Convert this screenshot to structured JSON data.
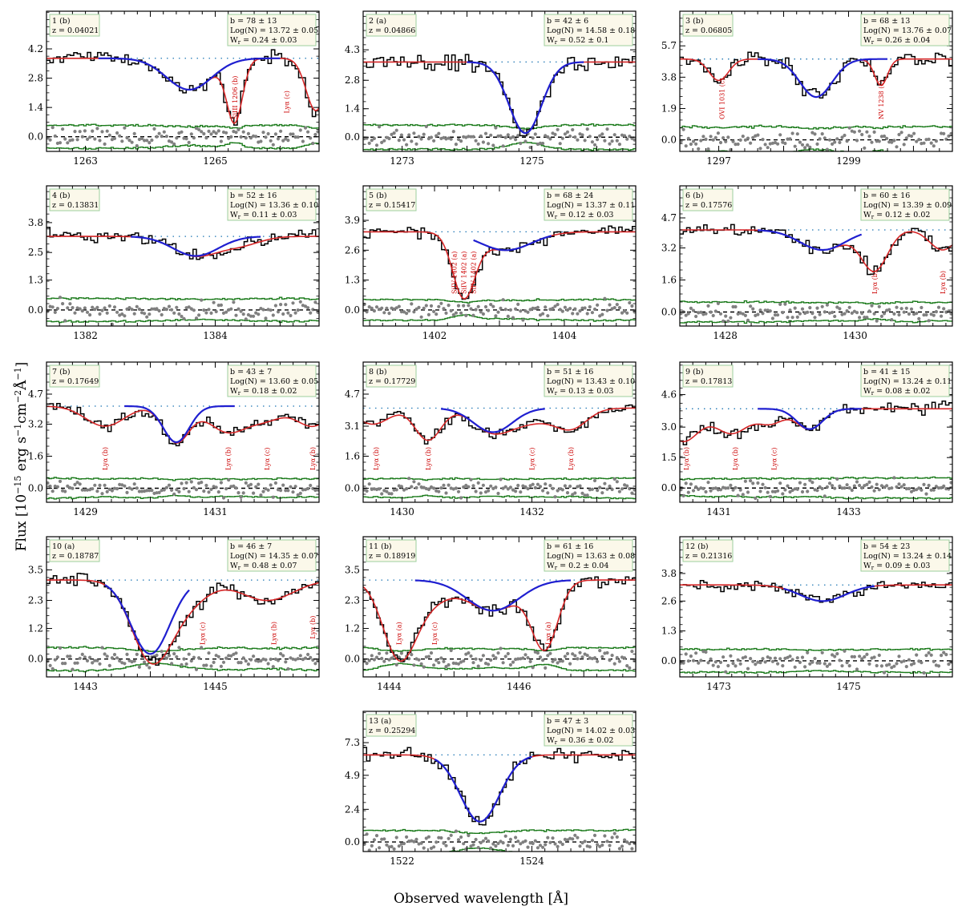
{
  "figure": {
    "xlabel": "Observed wavelength [Å]",
    "ylabel_main": "Flux [10",
    "ylabel_exp1": "−15",
    "ylabel_mid": " erg s",
    "ylabel_exp2": "−1",
    "ylabel_mid2": "cm",
    "ylabel_exp3": "−2",
    "ylabel_mid3": "Å",
    "ylabel_exp4": "−1",
    "ylabel_end": "]"
  },
  "colors": {
    "data": "#000000",
    "total_fit": "#d62728",
    "component_fit": "#1f1fd0",
    "error": "#1a7a1a",
    "residual": "#808080",
    "continuum": "#1f77b4",
    "annotation": "#cc0000",
    "label_box": "#fbf8ea",
    "label_box_edge": "#9ecf9e"
  },
  "chart_data": [
    {
      "type": "line",
      "panel": "1 (b)",
      "z": "z = 0.04021",
      "b": "b = 78 ± 13",
      "logN": "Log(N) = 13.72 ± 0.05",
      "wr": "0.24 ± 0.03",
      "xlim": [
        1262.4,
        1266.6
      ],
      "ylim": [
        -0.7,
        6.0
      ],
      "xticks": [
        1263,
        1265
      ],
      "yticks": [
        0.0,
        1.4,
        2.8,
        4.2
      ],
      "ytick_labels": [
        "0.0",
        "1.4",
        "2.8",
        "4.2"
      ],
      "continuum": 3.75,
      "noise": 0.55,
      "center": 1264.6,
      "sigma": 0.35,
      "depth": 1.5,
      "comp_range": [
        1263.2,
        1266.0
      ],
      "others": [
        {
          "c": 1265.3,
          "s": 0.12,
          "d": 2.9
        },
        {
          "c": 1266.55,
          "s": 0.15,
          "d": 2.5
        }
      ],
      "annotations": [
        {
          "text": "SiIII 1206 (b)",
          "x": 1265.3
        },
        {
          "text": "Lyα (c)",
          "x": 1266.1
        }
      ]
    },
    {
      "type": "line",
      "panel": "2 (a)",
      "z": "z = 0.04866",
      "b": "b = 42 ± 6",
      "logN": "Log(N) = 14.58 ± 0.18",
      "wr": "0.52 ± 0.1",
      "xlim": [
        1272.4,
        1276.6
      ],
      "ylim": [
        -0.7,
        6.2
      ],
      "xticks": [
        1273,
        1275
      ],
      "yticks": [
        0.0,
        1.4,
        2.8,
        4.3
      ],
      "ytick_labels": [
        "0.0",
        "1.4",
        "2.8",
        "4.3"
      ],
      "continuum": 3.7,
      "noise": 0.6,
      "center": 1274.9,
      "sigma": 0.25,
      "depth": 3.5,
      "comp_range": [
        1274.0,
        1275.8
      ],
      "others": [],
      "annotations": []
    },
    {
      "type": "line",
      "panel": "3 (b)",
      "z": "z = 0.06805",
      "b": "b = 68 ± 13",
      "logN": "Log(N) = 13.76 ± 0.07",
      "wr": "0.26 ± 0.04",
      "xlim": [
        1296.4,
        1300.6
      ],
      "ylim": [
        -0.7,
        7.8
      ],
      "xticks": [
        1297,
        1299
      ],
      "yticks": [
        0.0,
        1.9,
        3.8,
        5.7
      ],
      "ytick_labels": [
        "0.0",
        "1.9",
        "3.8",
        "5.7"
      ],
      "continuum": 4.9,
      "noise": 0.8,
      "center": 1298.5,
      "sigma": 0.25,
      "depth": 2.3,
      "comp_range": [
        1297.6,
        1299.6
      ],
      "others": [
        {
          "c": 1297.0,
          "s": 0.15,
          "d": 1.3
        },
        {
          "c": 1299.5,
          "s": 0.1,
          "d": 1.6
        }
      ],
      "annotations": [
        {
          "text": "OVI 1031 (c)",
          "x": 1297.05
        },
        {
          "text": "NV 1238 (c)",
          "x": 1299.5
        }
      ]
    },
    {
      "type": "line",
      "panel": "4 (b)",
      "z": "z = 0.13831",
      "b": "b = 52 ± 16",
      "logN": "Log(N) = 13.36 ± 0.10",
      "wr": "0.11 ± 0.03",
      "xlim": [
        1381.4,
        1385.6
      ],
      "ylim": [
        -0.7,
        5.4
      ],
      "xticks": [
        1382,
        1384
      ],
      "yticks": [
        0.0,
        1.3,
        2.5,
        3.8
      ],
      "ytick_labels": [
        "0.0",
        "1.3",
        "2.5",
        "3.8"
      ],
      "continuum": 3.2,
      "noise": 0.5,
      "center": 1383.7,
      "sigma": 0.35,
      "depth": 0.85,
      "comp_range": [
        1382.7,
        1384.7
      ],
      "others": [
        {
          "c": 1384.4,
          "s": 0.3,
          "d": 0.35
        }
      ],
      "annotations": []
    },
    {
      "type": "line",
      "panel": "5 (b)",
      "z": "z = 0.15417",
      "b": "b = 68 ± 24",
      "logN": "Log(N) = 13.37 ± 0.11",
      "wr": "0.12 ± 0.03",
      "xlim": [
        1400.9,
        1405.1
      ],
      "ylim": [
        -0.7,
        5.4
      ],
      "xticks": [
        1402,
        1404
      ],
      "yticks": [
        0.0,
        1.3,
        2.6,
        3.9
      ],
      "ytick_labels": [
        "0.0",
        "1.3",
        "2.6",
        "3.9"
      ],
      "continuum": 3.4,
      "noise": 0.45,
      "center": 1403.1,
      "sigma": 0.4,
      "depth": 0.8,
      "comp_range": [
        1402.6,
        1403.8
      ],
      "others": [
        {
          "c": 1402.45,
          "s": 0.17,
          "d": 2.7
        }
      ],
      "annotations": [
        {
          "text": "SiIV 1402 (a)",
          "x": 1402.3
        },
        {
          "text": "SiIV 1402 (a)",
          "x": 1402.45
        },
        {
          "text": "SiIV 1402 (a)",
          "x": 1402.6
        }
      ]
    },
    {
      "type": "line",
      "panel": "6 (b)",
      "z": "z = 0.17576",
      "b": "b = 60 ± 16",
      "logN": "Log(N) = 13.39 ± 0.09",
      "wr": "0.12 ± 0.02",
      "xlim": [
        1427.3,
        1431.5
      ],
      "ylim": [
        -0.7,
        6.3
      ],
      "xticks": [
        1428,
        1430
      ],
      "yticks": [
        0.0,
        1.6,
        3.2,
        4.7
      ],
      "ytick_labels": [
        "0.0",
        "1.6",
        "3.2",
        "4.7"
      ],
      "continuum": 4.1,
      "noise": 0.5,
      "center": 1429.5,
      "sigma": 0.35,
      "depth": 1.0,
      "comp_range": [
        1428.5,
        1430.1
      ],
      "others": [
        {
          "c": 1430.3,
          "s": 0.2,
          "d": 2.0
        },
        {
          "c": 1431.35,
          "s": 0.2,
          "d": 1.0
        }
      ],
      "annotations": [
        {
          "text": "Lyα (b)",
          "x": 1430.3
        },
        {
          "text": "Lyα (b)",
          "x": 1431.35
        }
      ]
    },
    {
      "type": "line",
      "panel": "7 (b)",
      "z": "z = 0.17649",
      "b": "b = 43 ± 7",
      "logN": "Log(N) = 13.60 ± 0.05",
      "wr": "0.18 ± 0.02",
      "xlim": [
        1428.4,
        1432.6
      ],
      "ylim": [
        -0.7,
        6.3
      ],
      "xticks": [
        1429,
        1431
      ],
      "yticks": [
        0.0,
        1.6,
        3.2,
        4.7
      ],
      "ytick_labels": [
        "0.0",
        "1.6",
        "3.2",
        "4.7"
      ],
      "continuum": 4.1,
      "noise": 0.5,
      "center": 1430.4,
      "sigma": 0.2,
      "depth": 1.8,
      "comp_range": [
        1429.6,
        1431.3
      ],
      "others": [
        {
          "c": 1429.3,
          "s": 0.3,
          "d": 1.0
        },
        {
          "c": 1431.2,
          "s": 0.3,
          "d": 1.3
        },
        {
          "c": 1431.8,
          "s": 0.25,
          "d": 0.6
        },
        {
          "c": 1432.5,
          "s": 0.25,
          "d": 1.0
        }
      ],
      "annotations": [
        {
          "text": "Lyα (b)",
          "x": 1429.3
        },
        {
          "text": "Lyα (b)",
          "x": 1431.2
        },
        {
          "text": "Lyα (c)",
          "x": 1431.8
        },
        {
          "text": "Lyα (b)",
          "x": 1432.5
        }
      ]
    },
    {
      "type": "line",
      "panel": "8 (b)",
      "z": "z = 0.17729",
      "b": "b = 51 ± 16",
      "logN": "Log(N) = 13.43 ± 0.10",
      "wr": "0.13 ± 0.03",
      "xlim": [
        1429.4,
        1433.6
      ],
      "ylim": [
        -0.7,
        6.3
      ],
      "xticks": [
        1430,
        1432
      ],
      "yticks": [
        0.0,
        1.6,
        3.1,
        4.7
      ],
      "ytick_labels": [
        "0.0",
        "1.6",
        "3.1",
        "4.7"
      ],
      "continuum": 4.0,
      "noise": 0.5,
      "center": 1431.4,
      "sigma": 0.3,
      "depth": 1.2,
      "comp_range": [
        1430.6,
        1432.2
      ],
      "others": [
        {
          "c": 1429.55,
          "s": 0.25,
          "d": 0.8
        },
        {
          "c": 1430.4,
          "s": 0.2,
          "d": 1.6
        },
        {
          "c": 1432.0,
          "s": 0.3,
          "d": 0.6
        },
        {
          "c": 1432.6,
          "s": 0.25,
          "d": 1.0
        }
      ],
      "annotations": [
        {
          "text": "Lyα (b)",
          "x": 1429.6
        },
        {
          "text": "Lyα (b)",
          "x": 1430.4
        },
        {
          "text": "Lyα (c)",
          "x": 1432.0
        },
        {
          "text": "Lyα (b)",
          "x": 1432.6
        }
      ]
    },
    {
      "type": "line",
      "panel": "9 (b)",
      "z": "z = 0.17813",
      "b": "b = 41 ± 15",
      "logN": "Log(N) = 13.24 ± 0.11",
      "wr": "0.08 ± 0.02",
      "xlim": [
        1430.4,
        1434.6
      ],
      "ylim": [
        -0.7,
        6.2
      ],
      "xticks": [
        1431,
        1433
      ],
      "yticks": [
        0.0,
        1.5,
        3.0,
        4.6
      ],
      "ytick_labels": [
        "0.0",
        "1.5",
        "3.0",
        "4.6"
      ],
      "continuum": 3.9,
      "noise": 0.5,
      "center": 1432.4,
      "sigma": 0.2,
      "depth": 1.0,
      "comp_range": [
        1431.6,
        1433.2
      ],
      "others": [
        {
          "c": 1430.45,
          "s": 0.25,
          "d": 1.6
        },
        {
          "c": 1431.2,
          "s": 0.25,
          "d": 1.2
        },
        {
          "c": 1431.8,
          "s": 0.2,
          "d": 0.7
        }
      ],
      "annotations": [
        {
          "text": "Lyα (b)",
          "x": 1430.5
        },
        {
          "text": "Lyα (b)",
          "x": 1431.25
        },
        {
          "text": "Lyα (c)",
          "x": 1431.85
        }
      ]
    },
    {
      "type": "line",
      "panel": "10 (a)",
      "z": "z = 0.18787",
      "b": "b = 46 ± 7",
      "logN": "Log(N) = 14.35 ± 0.07",
      "wr": "0.48 ± 0.07",
      "xlim": [
        1442.4,
        1446.6
      ],
      "ylim": [
        -0.7,
        4.8
      ],
      "xticks": [
        1443,
        1445
      ],
      "yticks": [
        0.0,
        1.2,
        2.3,
        3.5
      ],
      "ytick_labels": [
        "0.0",
        "1.2",
        "2.3",
        "3.5"
      ],
      "continuum": 3.1,
      "noise": 0.45,
      "center": 1444.0,
      "sigma": 0.3,
      "depth": 2.9,
      "comp_range": [
        1443.3,
        1444.6
      ],
      "others": [
        {
          "c": 1444.5,
          "s": 0.35,
          "d": 1.0
        },
        {
          "c": 1445.8,
          "s": 0.4,
          "d": 0.8
        }
      ],
      "annotations": [
        {
          "text": "Lyα (c)",
          "x": 1444.8
        },
        {
          "text": "Lyα (b)",
          "x": 1445.9
        },
        {
          "text": "Lyα (b)",
          "x": 1446.5
        }
      ]
    },
    {
      "type": "line",
      "panel": "11 (b)",
      "z": "z = 0.18919",
      "b": "b = 61 ± 16",
      "logN": "Log(N) = 13.63 ± 0.08",
      "wr": "0.2 ± 0.04",
      "xlim": [
        1443.6,
        1447.8
      ],
      "ylim": [
        -0.7,
        4.8
      ],
      "xticks": [
        1444,
        1446
      ],
      "yticks": [
        0.0,
        1.2,
        2.3,
        3.5
      ],
      "ytick_labels": [
        "0.0",
        "1.2",
        "2.3",
        "3.5"
      ],
      "continuum": 3.1,
      "noise": 0.45,
      "center": 1445.6,
      "sigma": 0.4,
      "depth": 1.2,
      "comp_range": [
        1444.4,
        1446.8
      ],
      "others": [
        {
          "c": 1444.15,
          "s": 0.25,
          "d": 2.9
        },
        {
          "c": 1444.6,
          "s": 0.3,
          "d": 0.8
        },
        {
          "c": 1446.4,
          "s": 0.2,
          "d": 2.6
        }
      ],
      "annotations": [
        {
          "text": "Lyα (a)",
          "x": 1444.15
        },
        {
          "text": "Lyα (c)",
          "x": 1444.7
        },
        {
          "text": "Lyα (a)",
          "x": 1446.45
        }
      ]
    },
    {
      "type": "line",
      "panel": "12 (b)",
      "z": "z = 0.21316",
      "b": "b = 54 ± 23",
      "logN": "Log(N) = 13.24 ± 0.14",
      "wr": "0.09 ± 0.03",
      "xlim": [
        1472.4,
        1476.6
      ],
      "ylim": [
        -0.7,
        5.4
      ],
      "xticks": [
        1473,
        1475
      ],
      "yticks": [
        0.0,
        1.3,
        2.6,
        3.8
      ],
      "ytick_labels": [
        "0.0",
        "1.3",
        "2.6",
        "3.8"
      ],
      "continuum": 3.3,
      "noise": 0.5,
      "center": 1474.6,
      "sigma": 0.35,
      "depth": 0.7,
      "comp_range": [
        1474.0,
        1475.4
      ],
      "others": [],
      "annotations": []
    },
    {
      "type": "line",
      "panel": "13 (a)",
      "z": "z = 0.25294",
      "b": "b = 47 ± 3",
      "logN": "Log(N) = 14.02 ± 0.03",
      "wr": "0.36 ± 0.02",
      "xlim": [
        1521.4,
        1525.6
      ],
      "ylim": [
        -0.7,
        9.6
      ],
      "xticks": [
        1522,
        1524
      ],
      "yticks": [
        0.0,
        2.4,
        4.9,
        7.3
      ],
      "ytick_labels": [
        "0.0",
        "2.4",
        "4.9",
        "7.3"
      ],
      "continuum": 6.4,
      "noise": 0.85,
      "center": 1523.2,
      "sigma": 0.3,
      "depth": 4.9,
      "comp_range": [
        1522.5,
        1524.0
      ],
      "others": [],
      "annotations": []
    }
  ]
}
